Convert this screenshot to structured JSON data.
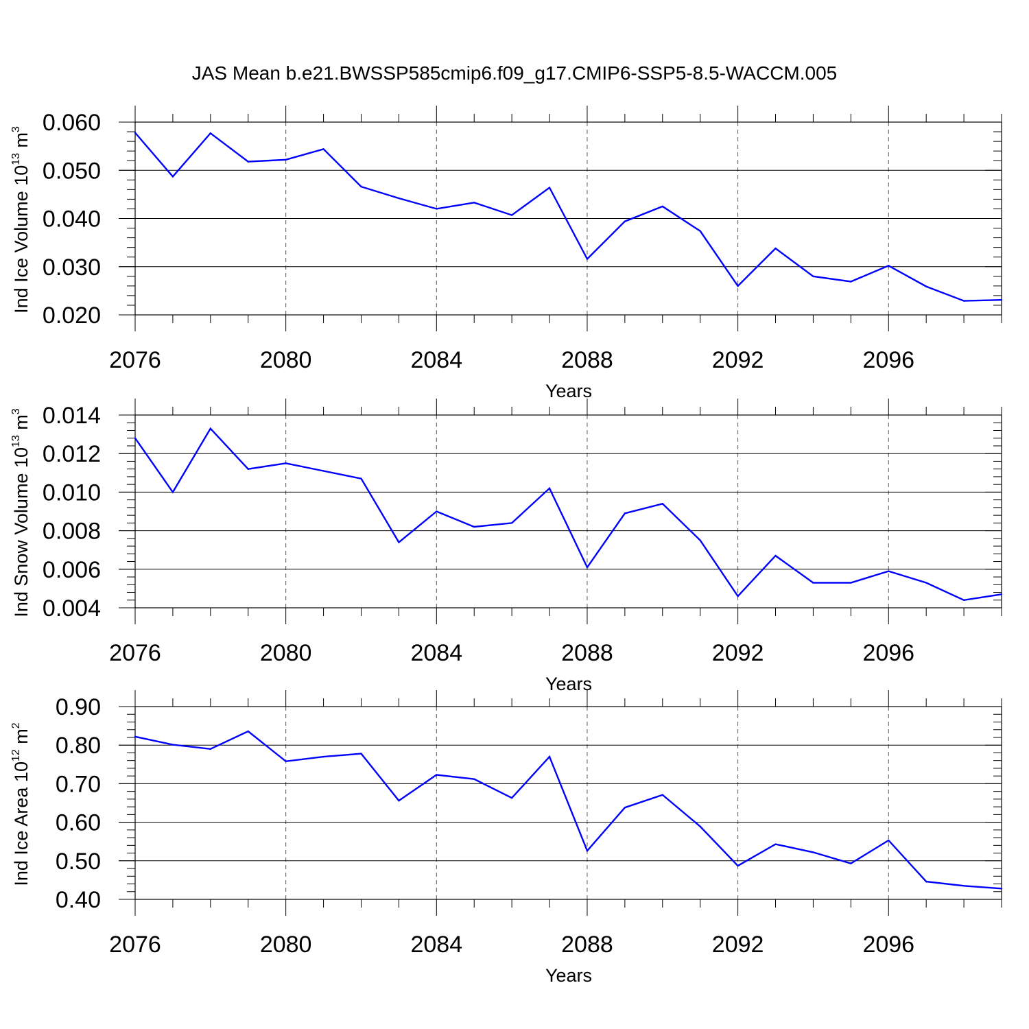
{
  "title": "JAS Mean b.e21.BWSSP585cmip6.f09_g17.CMIP6-SSP5-8.5-WACCM.005",
  "colors": {
    "line": "#0000ff",
    "axis": "#000000",
    "grid": "#555555"
  },
  "chart_data": [
    {
      "type": "line",
      "ylabel": {
        "text": "Ind Ice Volume 10",
        "exp": "13",
        "unit": " m",
        "unit_exp": "3"
      },
      "xlabel": "Years",
      "xlim": [
        2076,
        2099
      ],
      "ylim": [
        0.02,
        0.06
      ],
      "xticks": [
        2076,
        2080,
        2084,
        2088,
        2092,
        2096
      ],
      "yticks": [
        "0.060",
        "0.050",
        "0.040",
        "0.030",
        "0.020"
      ],
      "grid": "vertical-dashed",
      "x": [
        2076,
        2077,
        2078,
        2079,
        2080,
        2081,
        2082,
        2083,
        2084,
        2085,
        2086,
        2087,
        2088,
        2089,
        2090,
        2091,
        2092,
        2093,
        2094,
        2095,
        2096,
        2097,
        2098,
        2099
      ],
      "values": [
        0.0578,
        0.0487,
        0.0577,
        0.0518,
        0.0522,
        0.0544,
        0.0466,
        0.0442,
        0.042,
        0.0433,
        0.0407,
        0.0464,
        0.0316,
        0.0394,
        0.0425,
        0.0374,
        0.026,
        0.0338,
        0.028,
        0.0269,
        0.0302,
        0.0259,
        0.0229,
        0.0231
      ]
    },
    {
      "type": "line",
      "ylabel": {
        "text": "Ind Snow Volume 10",
        "exp": "13",
        "unit": " m",
        "unit_exp": "3"
      },
      "xlabel": "Years",
      "xlim": [
        2076,
        2099
      ],
      "ylim": [
        0.004,
        0.014
      ],
      "xticks": [
        2076,
        2080,
        2084,
        2088,
        2092,
        2096
      ],
      "yticks": [
        "0.014",
        "0.012",
        "0.010",
        "0.008",
        "0.006",
        "0.004"
      ],
      "grid": "vertical-dashed",
      "x": [
        2076,
        2077,
        2078,
        2079,
        2080,
        2081,
        2082,
        2083,
        2084,
        2085,
        2086,
        2087,
        2088,
        2089,
        2090,
        2091,
        2092,
        2093,
        2094,
        2095,
        2096,
        2097,
        2098,
        2099
      ],
      "values": [
        0.0128,
        0.01,
        0.0133,
        0.0112,
        0.0115,
        0.0111,
        0.0107,
        0.0074,
        0.009,
        0.0082,
        0.0084,
        0.0102,
        0.0061,
        0.0089,
        0.0094,
        0.0075,
        0.0046,
        0.0067,
        0.0053,
        0.0053,
        0.0059,
        0.0053,
        0.0044,
        0.0047
      ]
    },
    {
      "type": "line",
      "ylabel": {
        "text": "Ind Ice Area 10",
        "exp": "12",
        "unit": " m",
        "unit_exp": "2"
      },
      "xlabel": "Years",
      "xlim": [
        2076,
        2099
      ],
      "ylim": [
        0.4,
        0.9
      ],
      "xticks": [
        2076,
        2080,
        2084,
        2088,
        2092,
        2096
      ],
      "yticks": [
        "0.90",
        "0.80",
        "0.70",
        "0.60",
        "0.50",
        "0.40"
      ],
      "grid": "vertical-dashed",
      "x": [
        2076,
        2077,
        2078,
        2079,
        2080,
        2081,
        2082,
        2083,
        2084,
        2085,
        2086,
        2087,
        2088,
        2089,
        2090,
        2091,
        2092,
        2093,
        2094,
        2095,
        2096,
        2097,
        2098,
        2099
      ],
      "values": [
        0.822,
        0.801,
        0.79,
        0.836,
        0.758,
        0.77,
        0.778,
        0.656,
        0.723,
        0.712,
        0.663,
        0.77,
        0.526,
        0.638,
        0.671,
        0.589,
        0.487,
        0.543,
        0.522,
        0.493,
        0.553,
        0.446,
        0.435,
        0.428
      ]
    }
  ]
}
